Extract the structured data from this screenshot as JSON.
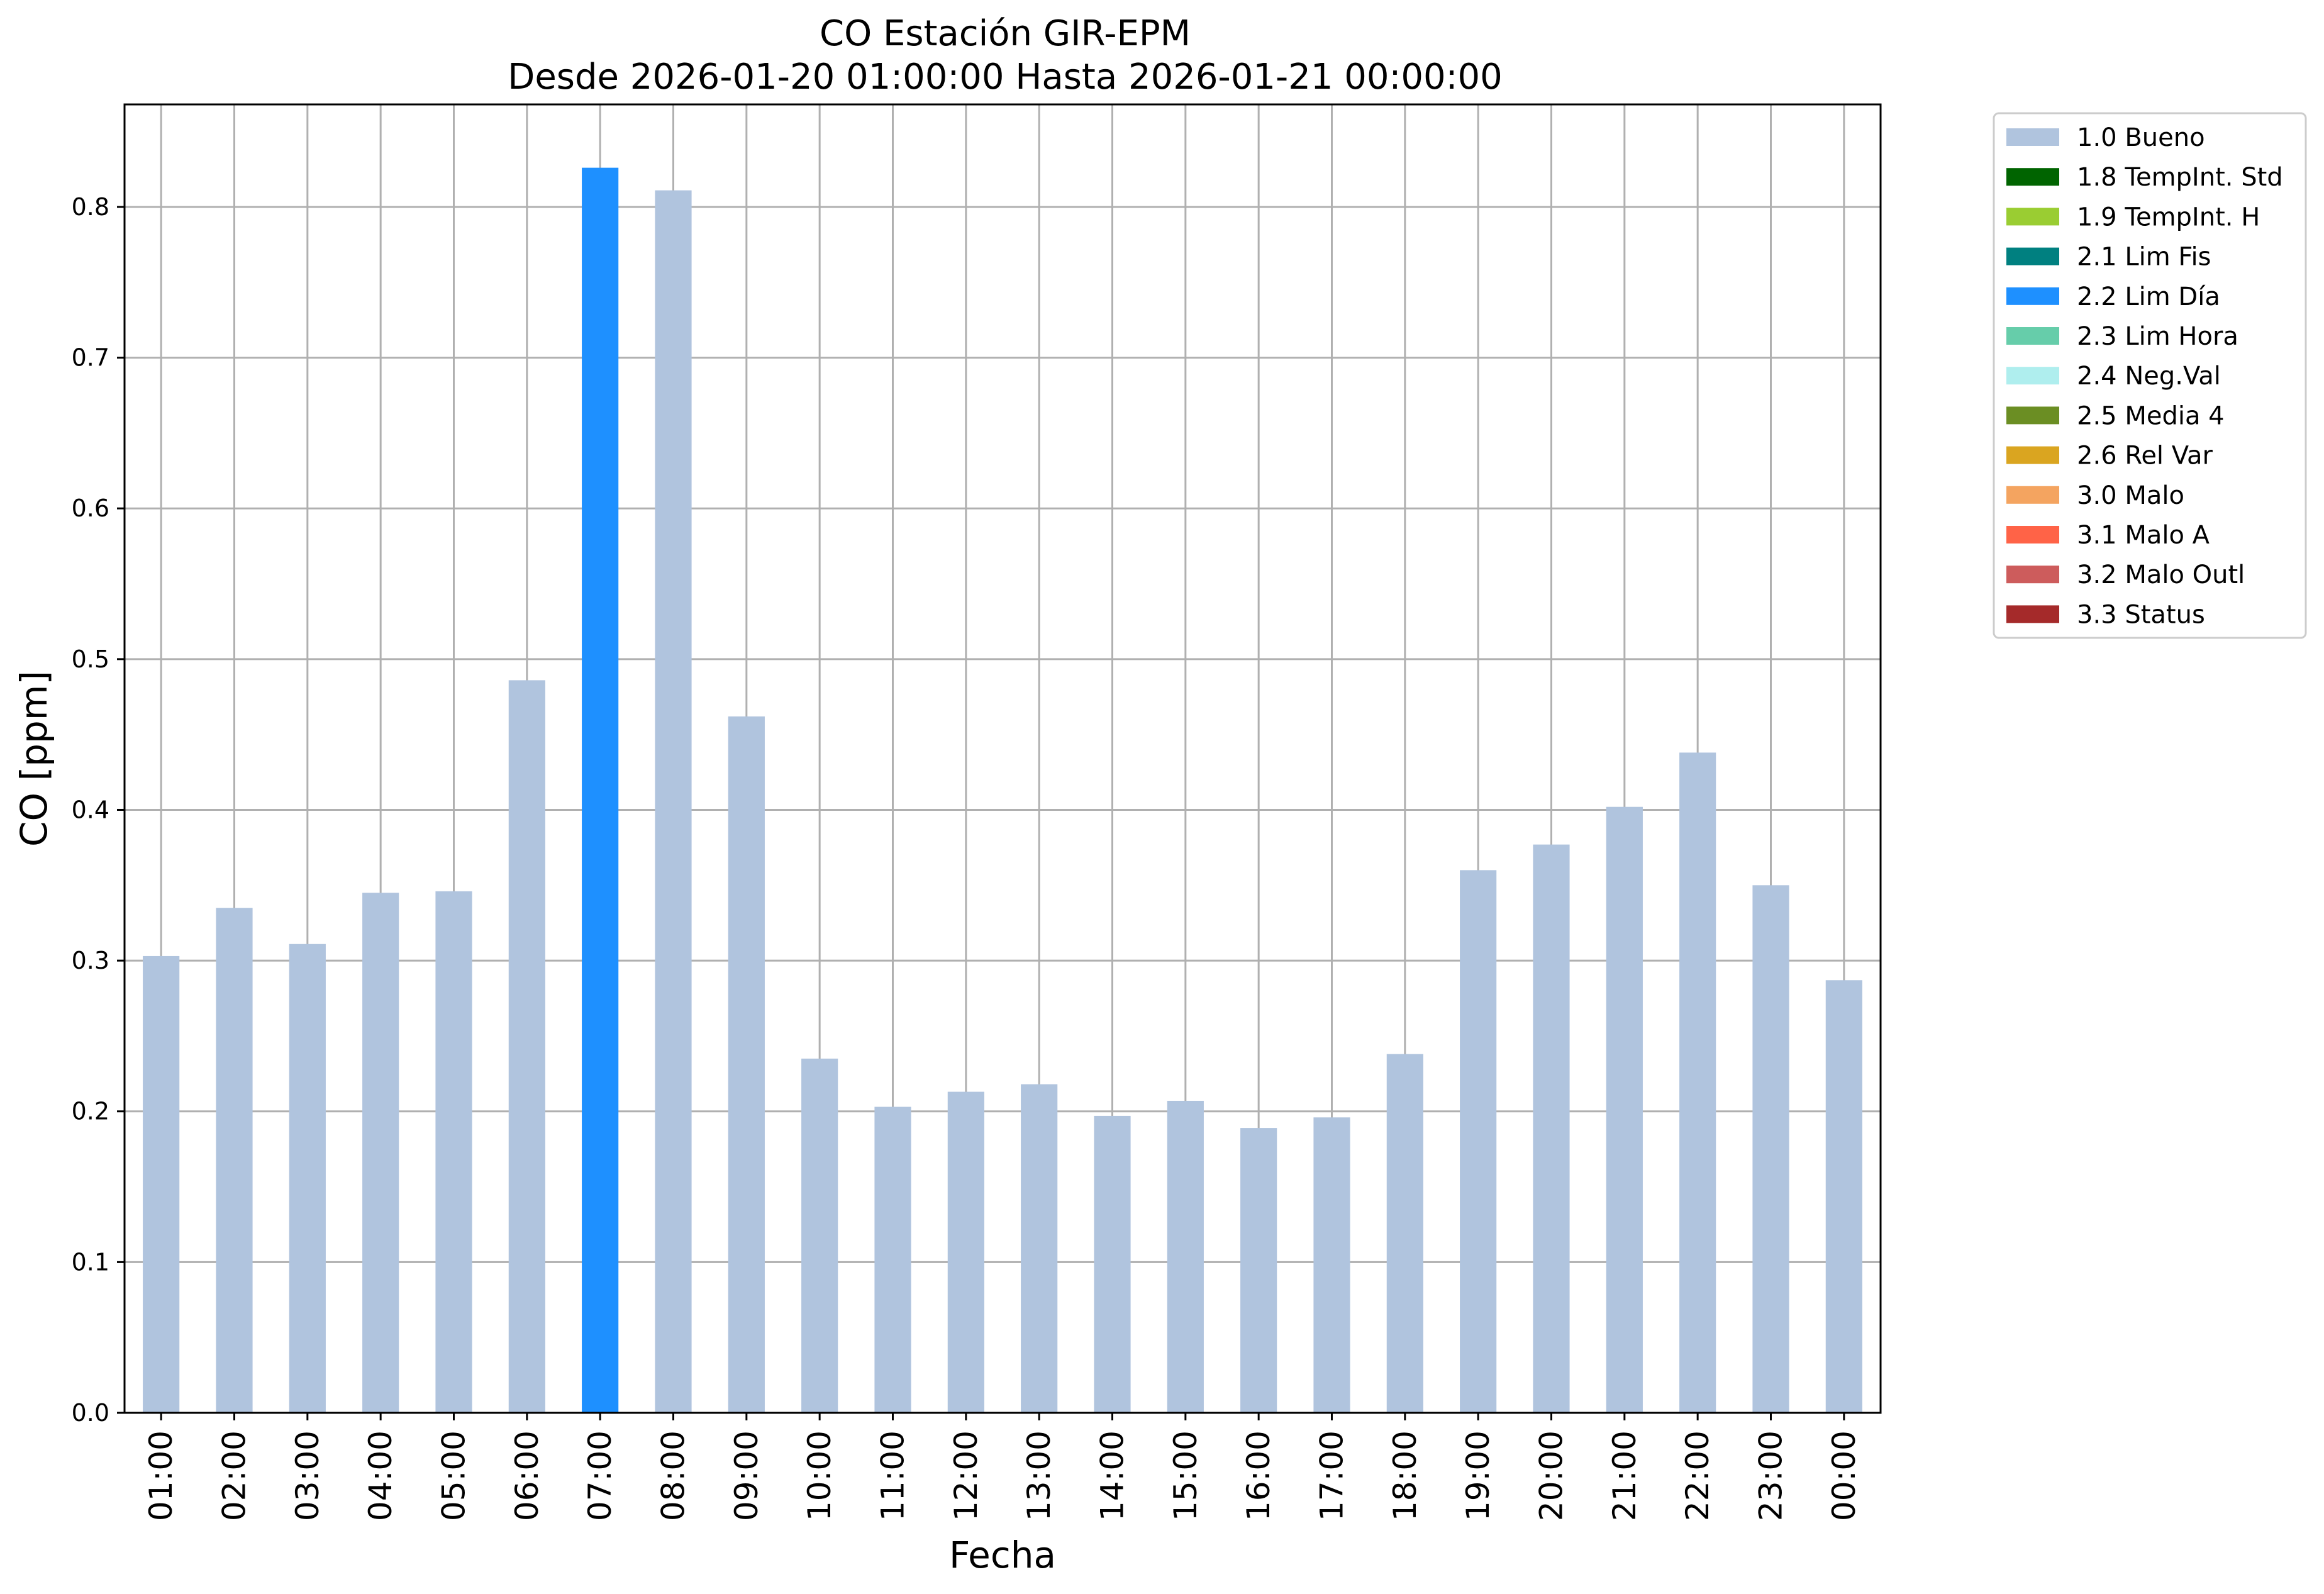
{
  "chart_data": {
    "type": "bar",
    "title": "CO Estación GIR-EPM",
    "subtitle": "Desde 2026-01-20 01:00:00 Hasta 2026-01-21 00:00:00",
    "xlabel": "Fecha",
    "ylabel": "CO [ppm]",
    "ylim": [
      0,
      0.868
    ],
    "yticks": [
      "0.0",
      "0.1",
      "0.2",
      "0.3",
      "0.4",
      "0.5",
      "0.6",
      "0.7",
      "0.8"
    ],
    "grid": true,
    "legend_position": "outside-top-right",
    "categories": [
      "01:00",
      "02:00",
      "03:00",
      "04:00",
      "05:00",
      "06:00",
      "07:00",
      "08:00",
      "09:00",
      "10:00",
      "11:00",
      "12:00",
      "13:00",
      "14:00",
      "15:00",
      "16:00",
      "17:00",
      "18:00",
      "19:00",
      "20:00",
      "21:00",
      "22:00",
      "23:00",
      "00:00"
    ],
    "values": [
      0.303,
      0.335,
      0.311,
      0.345,
      0.346,
      0.486,
      0.826,
      0.811,
      0.462,
      0.235,
      0.203,
      0.213,
      0.218,
      0.197,
      0.207,
      0.189,
      0.196,
      0.238,
      0.36,
      0.377,
      0.402,
      0.438,
      0.35,
      0.287
    ],
    "bar_flags": [
      "1.0 Bueno",
      "1.0 Bueno",
      "1.0 Bueno",
      "1.0 Bueno",
      "1.0 Bueno",
      "1.0 Bueno",
      "2.2 Lim Día",
      "1.0 Bueno",
      "1.0 Bueno",
      "1.0 Bueno",
      "1.0 Bueno",
      "1.0 Bueno",
      "1.0 Bueno",
      "1.0 Bueno",
      "1.0 Bueno",
      "1.0 Bueno",
      "1.0 Bueno",
      "1.0 Bueno",
      "1.0 Bueno",
      "1.0 Bueno",
      "1.0 Bueno",
      "1.0 Bueno",
      "1.0 Bueno",
      "1.0 Bueno"
    ],
    "legend": [
      {
        "label": "1.0 Bueno",
        "color": "#b0c4de"
      },
      {
        "label": "1.8 TempInt. Std",
        "color": "#006400"
      },
      {
        "label": "1.9 TempInt. H",
        "color": "#9acd32"
      },
      {
        "label": "2.1 Lim Fis",
        "color": "#008080"
      },
      {
        "label": "2.2 Lim Día",
        "color": "#1e90ff"
      },
      {
        "label": "2.3 Lim Hora",
        "color": "#66cdaa"
      },
      {
        "label": "2.4 Neg.Val",
        "color": "#afeeee"
      },
      {
        "label": "2.5 Media 4",
        "color": "#6b8e23"
      },
      {
        "label": "2.6 Rel Var",
        "color": "#daa520"
      },
      {
        "label": "3.0 Malo",
        "color": "#f4a460"
      },
      {
        "label": "3.1 Malo A",
        "color": "#ff6347"
      },
      {
        "label": "3.2 Malo Outl",
        "color": "#cd5c5c"
      },
      {
        "label": "3.3 Status",
        "color": "#a52a2a"
      }
    ]
  }
}
